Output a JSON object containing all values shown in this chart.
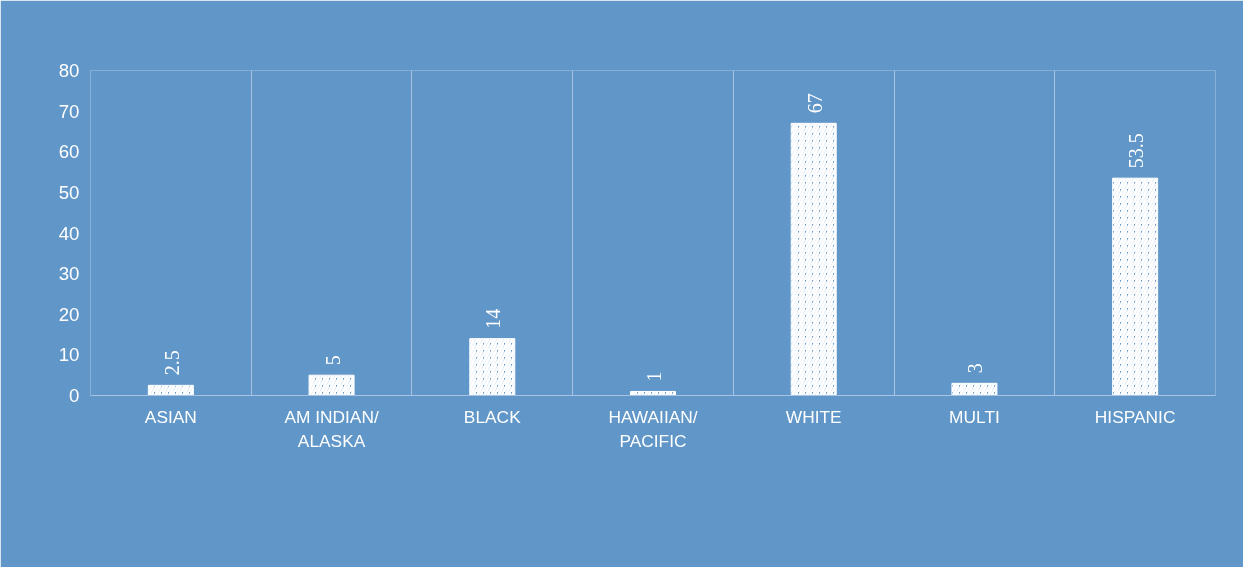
{
  "chart_data": {
    "type": "bar",
    "categories": [
      "ASIAN",
      "AM INDIAN/\nALASKA",
      "BLACK",
      "HAWAIIAN/\nPACIFIC",
      "WHITE",
      "MULTI",
      "HISPANIC"
    ],
    "values": [
      2.5,
      5,
      14,
      1,
      67,
      3,
      53.5
    ],
    "color": "#ffffff",
    "data_labels": true,
    "ylim": [
      0,
      80
    ],
    "yticks": [
      0,
      10,
      20,
      30,
      40,
      50,
      60,
      70,
      80
    ],
    "grid": "x"
  }
}
